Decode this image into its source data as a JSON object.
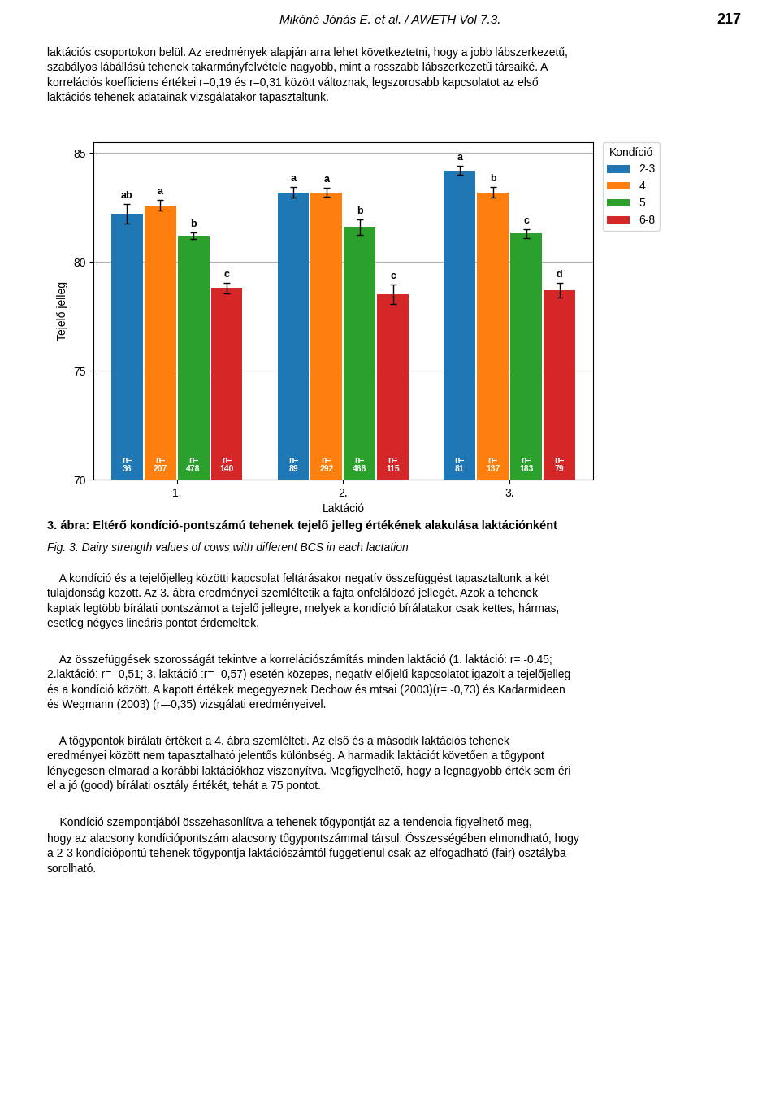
{
  "chart_data": {
    "type": "bar",
    "title": "Kondíció",
    "xlabel": "Laktáció",
    "ylabel": "Tejelő jelleg",
    "categories": [
      "1.",
      "2.",
      "3."
    ],
    "series": [
      {
        "name": "2-3",
        "values": [
          82.2,
          83.2,
          84.2
        ],
        "errors": [
          0.45,
          0.25,
          0.2
        ],
        "significance": [
          "ab",
          "a",
          "a"
        ],
        "n_labels": [
          "n=\n36",
          "n=\n89",
          "n=\n81"
        ]
      },
      {
        "name": "4",
        "values": [
          82.6,
          83.2,
          83.2
        ],
        "errors": [
          0.25,
          0.2,
          0.25
        ],
        "significance": [
          "a",
          "a",
          "b"
        ],
        "n_labels": [
          "n=\n207",
          "n=\n292",
          "n=\n137"
        ]
      },
      {
        "name": "5",
        "values": [
          81.2,
          81.6,
          81.3
        ],
        "errors": [
          0.15,
          0.35,
          0.2
        ],
        "significance": [
          "b",
          "b",
          "c"
        ],
        "n_labels": [
          "n=\n478",
          "n=\n468",
          "n=\n183"
        ]
      },
      {
        "name": "6-8",
        "values": [
          78.8,
          78.5,
          78.7
        ],
        "errors": [
          0.25,
          0.45,
          0.35
        ],
        "significance": [
          "c",
          "c",
          "d"
        ],
        "n_labels": [
          "n=\n140",
          "n=\n115",
          "n=\n79"
        ]
      }
    ],
    "ylim": [
      70,
      85.5
    ],
    "yticks": [
      70,
      75,
      80,
      85
    ],
    "grid": true,
    "legend": "upper left"
  },
  "page": {
    "header": "Mikóné Jónás E. et al. / AWETH Vol 7.3.",
    "page_number": "217",
    "paragraphs_above": [
      "laktációs csoportokon belül. Az eredmények alapján arra lehet következtetni, hogy a jobb lábszerkezetű,\nszabályos lábállású tehenek takarmányfelvétele nagyobb, mint a rosszabb lábszerkezetű társaiké. A\nkorrelációs koefficiens értékei r=0,19 és r=0,31 között változnak, legszorosabb kapcsolatot az első\nlaktációs tehenek adatainak vizsgálatakor tapasztaltunk."
    ],
    "caption": "3. ábra: Eltérő kondíció-pontszámú tehenek tejelő jelleg értékének alakulása laktációnként",
    "caption_en": "Fig. 3. Dairy strength values of cows with different BCS in each lactation",
    "paragraphs_below": [
      "    A kondíció és a tejelőjelleg közötti kapcsolat feltárásakor negatív összefüggést tapasztaltunk a két\ntulajdonság között. Az 3. ábra eredményei szemléltetik a fajta önfeláldozó jellegét. Azok a tehenek\nkaptak legtöbb bírálati pontszámot a tejelő jellegre, melyek a kondíció bírálatakor csak kettes, hármas,\nesetleg négyes lineáris pontot érdemeltek.",
      "    Az összefüggések szorosságát tekintve a korrelációszámítás minden laktáció (1. laktáció: r= -0,45;\n2.laktáció: r= -0,51; 3. laktáció :r= -0,57) esetén közepes, negatív előjelű kapcsolatot igazolt a tejelőjelleg\nés a kondíció között. A kapott értékek megegyeznek Dechow és mtsai (2003)(r= -0,73) és Kadarmideen\nés Wegmann (2003) (r=-0,35) vizsgálati eredményeivel.",
      "    A tőgypontok bírálati értékeit a 4. ábra szemlélteti. Az első és a második laktációs tehenek\neredményei között nem tapasztalható jelentős különbség. A harmadik laktációt követően a tőgypont\nlényegesen elmarad a korábbi laktációkhoz viszonyítva. Megfigyelhető, hogy a legnagyobb érték sem éri\nel a jó (good) bírálati osztály értékét, tehát a 75 pontot.",
      "    Kondíció szempontjából összehasonlítva a tehenek tőgypontját az a tendencia figyelhető meg,\nhogy az alacsony kondíciópontszám alacsony tőgypontszámmal társul. Összességében elmondható, hogy\na 2-3 kondíciópontú tehenek tőgypontja laktációszámtól függetlenül csak az elfogadható (fair) osztályba\nsorolható."
    ]
  }
}
